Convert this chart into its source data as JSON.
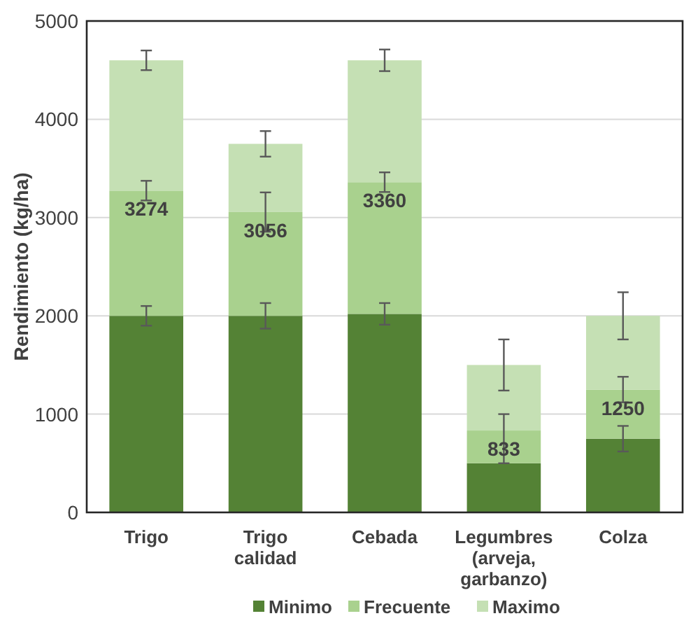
{
  "chart_data": {
    "type": "bar",
    "stacked": true,
    "ylabel": "Rendimiento (kg/ha)",
    "categories": [
      "Trigo",
      "Trigo calidad",
      "Cebada",
      "Legumbres (arveja, garbanzo)",
      "Colza"
    ],
    "series": [
      {
        "name": "Minimo",
        "color": "#548235",
        "values": [
          2000,
          2000,
          2020,
          500,
          750
        ],
        "errors": [
          100,
          130,
          110,
          null,
          130
        ]
      },
      {
        "name": "Frecuente",
        "color": "#a9d18e",
        "values": [
          1274,
          1056,
          1340,
          333,
          500
        ],
        "errors": [
          100,
          200,
          100,
          [
            500,
            1000
          ],
          130
        ]
      },
      {
        "name": "Maximo",
        "color": "#c5e0b4",
        "values": [
          1326,
          694,
          1240,
          667,
          750
        ],
        "errors": [
          100,
          130,
          110,
          260,
          240
        ]
      }
    ],
    "annotations": [
      {
        "text": "3274",
        "x": "Trigo",
        "y": 3274
      },
      {
        "text": "3056",
        "x": "Trigo calidad",
        "y": 3056
      },
      {
        "text": "3360",
        "x": "Cebada",
        "y": 3360
      },
      {
        "text": "833",
        "x": "Legumbres (arveja, garbanzo)",
        "y": 833
      },
      {
        "text": "1250",
        "x": "Colza",
        "y": 1250
      }
    ],
    "ylim": [
      0,
      5000
    ],
    "yticks": [
      0,
      1000,
      2000,
      3000,
      4000,
      5000
    ],
    "grid": "y",
    "legend": "bottom"
  }
}
